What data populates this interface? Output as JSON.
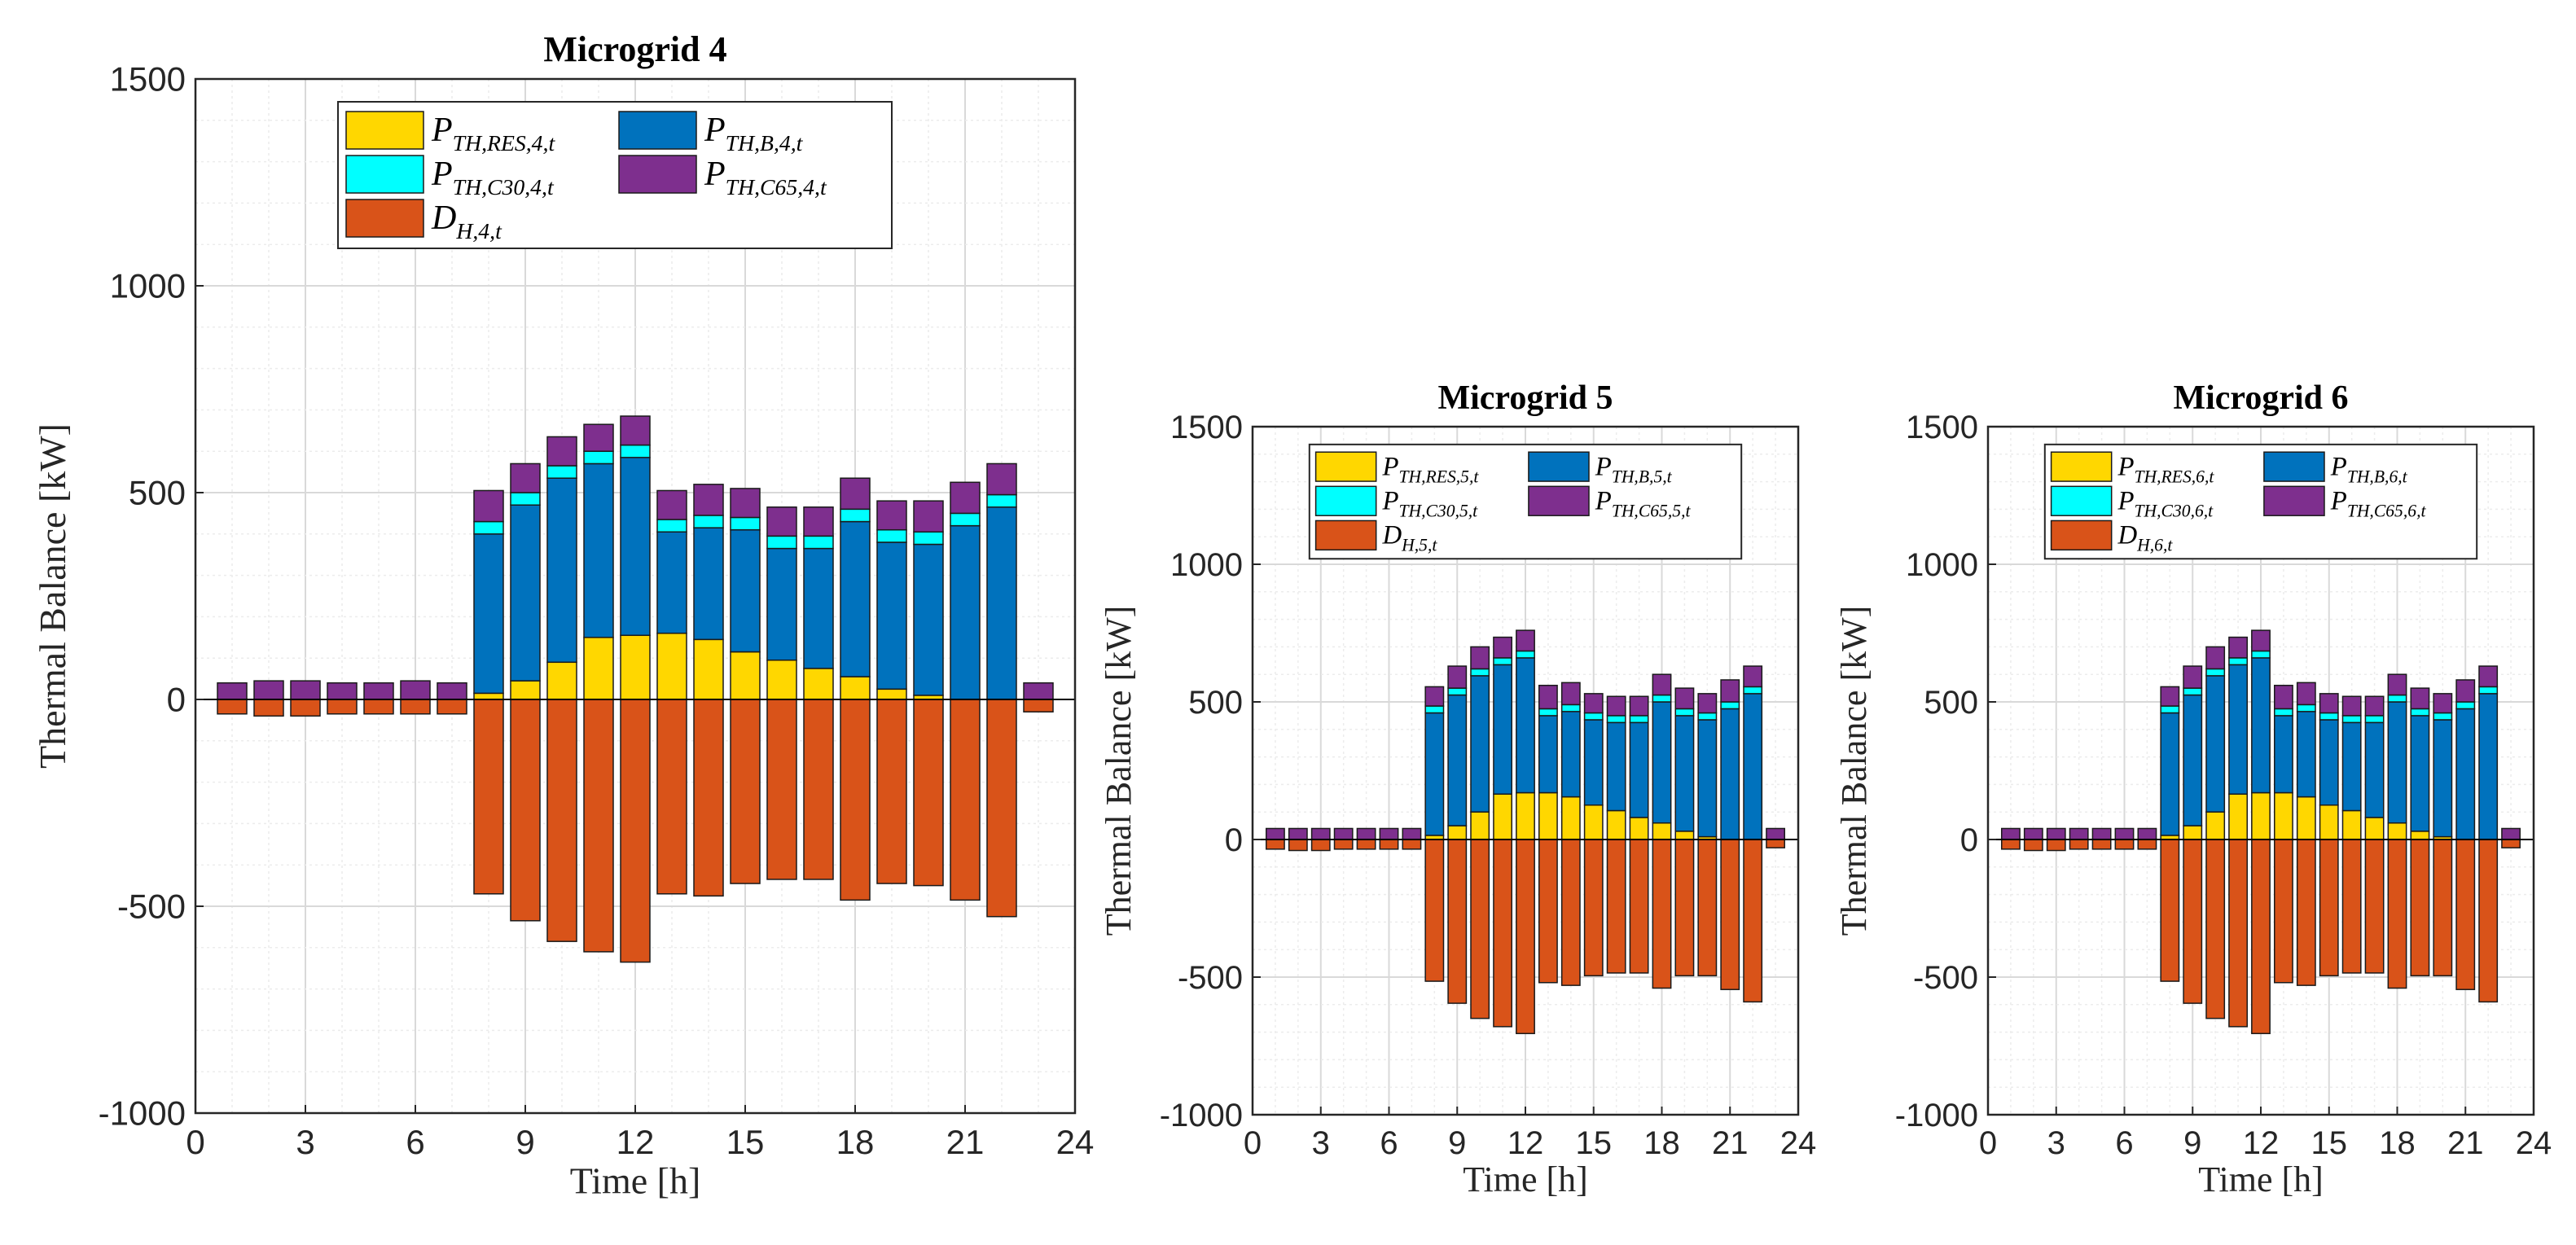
{
  "figure": {
    "colors": {
      "res": "#FFD700",
      "b": "#0072BD",
      "c30": "#00FFFF",
      "c65": "#7E2F8E",
      "dh": "#D95319",
      "grid": "#e3e3e3",
      "axis": "#262626"
    }
  },
  "chart_data": [
    {
      "type": "bar",
      "stacked": true,
      "title": "Microgrid 4",
      "xlabel": "Time [h]",
      "ylabel": "Thermal Balance [kW]",
      "xlim": [
        0,
        24
      ],
      "ylim": [
        -1000,
        1500
      ],
      "xticks": [
        "0",
        "3",
        "6",
        "9",
        "12",
        "15",
        "18",
        "21",
        "24"
      ],
      "yticks": [
        "-1000",
        "-500",
        "0",
        "500",
        "1000",
        "1500"
      ],
      "grid": true,
      "legend_position": "top",
      "legend": [
        "P_{TH,RES,4,t}",
        "P_{TH,B,4,t}",
        "P_{TH,C30,4,t}",
        "P_{TH,C65,4,t}",
        "D_{H,4,t}"
      ],
      "x": [
        1,
        2,
        3,
        4,
        5,
        6,
        7,
        8,
        9,
        10,
        11,
        12,
        13,
        14,
        15,
        16,
        17,
        18,
        19,
        20,
        21,
        22,
        23
      ],
      "series": [
        {
          "name": "P_{TH,RES,4,t}",
          "key": "res",
          "values": [
            0,
            0,
            0,
            0,
            0,
            0,
            0,
            15,
            45,
            90,
            150,
            155,
            160,
            145,
            115,
            95,
            75,
            55,
            25,
            10,
            0,
            0,
            0
          ]
        },
        {
          "name": "P_{TH,B,4,t}",
          "key": "b",
          "values": [
            0,
            0,
            0,
            0,
            0,
            0,
            0,
            385,
            425,
            445,
            420,
            430,
            245,
            270,
            295,
            270,
            290,
            375,
            355,
            365,
            420,
            465,
            0
          ]
        },
        {
          "name": "P_{TH,C30,4,t}",
          "key": "c30",
          "values": [
            0,
            0,
            0,
            0,
            0,
            0,
            0,
            30,
            30,
            30,
            30,
            30,
            30,
            30,
            30,
            30,
            30,
            30,
            30,
            30,
            30,
            30,
            0
          ]
        },
        {
          "name": "P_{TH,C65,4,t}",
          "key": "c65",
          "values": [
            40,
            45,
            45,
            40,
            40,
            45,
            40,
            75,
            70,
            70,
            65,
            70,
            70,
            75,
            70,
            70,
            70,
            75,
            70,
            75,
            75,
            75,
            40
          ]
        },
        {
          "name": "D_{H,4,t}",
          "key": "dh",
          "values": [
            -35,
            -40,
            -40,
            -35,
            -35,
            -35,
            -35,
            -470,
            -535,
            -585,
            -610,
            -635,
            -470,
            -475,
            -445,
            -435,
            -435,
            -485,
            -445,
            -450,
            -485,
            -525,
            -30
          ]
        }
      ]
    },
    {
      "type": "bar",
      "stacked": true,
      "title": "Microgrid 5",
      "xlabel": "Time [h]",
      "ylabel": "Thermal Balance [kW]",
      "xlim": [
        0,
        24
      ],
      "ylim": [
        -1000,
        1500
      ],
      "xticks": [
        "0",
        "3",
        "6",
        "9",
        "12",
        "15",
        "18",
        "21",
        "24"
      ],
      "yticks": [
        "-1000",
        "-500",
        "0",
        "500",
        "1000",
        "1500"
      ],
      "grid": true,
      "legend_position": "top",
      "legend": [
        "P_{TH,RES,5,t}",
        "P_{TH,B,5,t}",
        "P_{TH,C30,5,t}",
        "P_{TH,C65,5,t}",
        "D_{H,5,t}"
      ],
      "x": [
        1,
        2,
        3,
        4,
        5,
        6,
        7,
        8,
        9,
        10,
        11,
        12,
        13,
        14,
        15,
        16,
        17,
        18,
        19,
        20,
        21,
        22,
        23
      ],
      "series": [
        {
          "name": "P_{TH,RES,5,t}",
          "key": "res",
          "values": [
            0,
            0,
            0,
            0,
            0,
            0,
            0,
            15,
            50,
            100,
            165,
            170,
            170,
            155,
            125,
            105,
            80,
            60,
            30,
            10,
            0,
            0,
            0
          ]
        },
        {
          "name": "P_{TH,B,5,t}",
          "key": "b",
          "values": [
            0,
            0,
            0,
            0,
            0,
            0,
            0,
            445,
            475,
            495,
            470,
            490,
            280,
            310,
            310,
            320,
            345,
            440,
            420,
            425,
            475,
            530,
            0
          ]
        },
        {
          "name": "P_{TH,C30,5,t}",
          "key": "c30",
          "values": [
            0,
            0,
            0,
            0,
            0,
            0,
            0,
            25,
            25,
            25,
            25,
            25,
            25,
            25,
            25,
            25,
            25,
            25,
            25,
            25,
            25,
            25,
            0
          ]
        },
        {
          "name": "P_{TH,C65,5,t}",
          "key": "c65",
          "values": [
            40,
            40,
            40,
            40,
            40,
            40,
            40,
            70,
            80,
            80,
            75,
            75,
            85,
            80,
            70,
            70,
            70,
            75,
            75,
            70,
            80,
            75,
            40
          ]
        },
        {
          "name": "D_{H,5,t}",
          "key": "dh",
          "values": [
            -35,
            -40,
            -40,
            -35,
            -35,
            -35,
            -35,
            -515,
            -595,
            -650,
            -680,
            -705,
            -520,
            -530,
            -495,
            -485,
            -485,
            -540,
            -495,
            -495,
            -545,
            -590,
            -30
          ]
        }
      ]
    },
    {
      "type": "bar",
      "stacked": true,
      "title": "Microgrid 6",
      "xlabel": "Time [h]",
      "ylabel": "Thermal Balance [kW]",
      "xlim": [
        0,
        24
      ],
      "ylim": [
        -1000,
        1500
      ],
      "xticks": [
        "0",
        "3",
        "6",
        "9",
        "12",
        "15",
        "18",
        "21",
        "24"
      ],
      "yticks": [
        "-1000",
        "-500",
        "0",
        "500",
        "1000",
        "1500"
      ],
      "grid": true,
      "legend_position": "top",
      "legend": [
        "P_{TH,RES,6,t}",
        "P_{TH,B,6,t}",
        "P_{TH,C30,6,t}",
        "P_{TH,C65,6,t}",
        "D_{H,6,t}"
      ],
      "x": [
        1,
        2,
        3,
        4,
        5,
        6,
        7,
        8,
        9,
        10,
        11,
        12,
        13,
        14,
        15,
        16,
        17,
        18,
        19,
        20,
        21,
        22,
        23
      ],
      "series": [
        {
          "name": "P_{TH,RES,6,t}",
          "key": "res",
          "values": [
            0,
            0,
            0,
            0,
            0,
            0,
            0,
            15,
            50,
            100,
            165,
            170,
            170,
            155,
            125,
            105,
            80,
            60,
            30,
            10,
            0,
            0,
            0
          ]
        },
        {
          "name": "P_{TH,B,6,t}",
          "key": "b",
          "values": [
            0,
            0,
            0,
            0,
            0,
            0,
            0,
            445,
            475,
            495,
            470,
            490,
            280,
            310,
            310,
            320,
            345,
            440,
            420,
            425,
            475,
            530,
            0
          ]
        },
        {
          "name": "P_{TH,C30,6,t}",
          "key": "c30",
          "values": [
            0,
            0,
            0,
            0,
            0,
            0,
            0,
            25,
            25,
            25,
            25,
            25,
            25,
            25,
            25,
            25,
            25,
            25,
            25,
            25,
            25,
            25,
            0
          ]
        },
        {
          "name": "P_{TH,C65,6,t}",
          "key": "c65",
          "values": [
            40,
            40,
            40,
            40,
            40,
            40,
            40,
            70,
            80,
            80,
            75,
            75,
            85,
            80,
            70,
            70,
            70,
            75,
            75,
            70,
            80,
            75,
            40
          ]
        },
        {
          "name": "D_{H,6,t}",
          "key": "dh",
          "values": [
            -35,
            -40,
            -40,
            -35,
            -35,
            -35,
            -35,
            -515,
            -595,
            -650,
            -680,
            -705,
            -520,
            -530,
            -495,
            -485,
            -485,
            -540,
            -495,
            -495,
            -545,
            -590,
            -30
          ]
        }
      ]
    }
  ]
}
